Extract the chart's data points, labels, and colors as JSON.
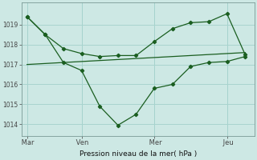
{
  "bg_color": "#cde8e4",
  "grid_color": "#a8d4cf",
  "line_color": "#1a5e20",
  "title": "Pression niveau de la mer( hPa )",
  "yticks": [
    1014,
    1015,
    1016,
    1017,
    1018,
    1019
  ],
  "ylim": [
    1013.4,
    1020.1
  ],
  "xtick_labels": [
    " Mar",
    " Ven",
    " Mer",
    " Jeu"
  ],
  "xtick_positions": [
    0,
    3,
    7,
    11
  ],
  "series1_x": [
    0,
    1,
    2,
    3,
    4,
    5,
    6,
    7,
    8,
    9,
    10,
    11,
    12
  ],
  "series1_y": [
    1019.4,
    1018.5,
    1017.1,
    1016.7,
    1014.9,
    1013.95,
    1014.5,
    1015.8,
    1016.0,
    1016.9,
    1017.1,
    1017.15,
    1017.4
  ],
  "series2_x": [
    0,
    1,
    2,
    3,
    4,
    5,
    6,
    7,
    8,
    9,
    10,
    11,
    12
  ],
  "series2_y": [
    1019.4,
    1018.5,
    1017.8,
    1017.55,
    1017.4,
    1017.45,
    1017.45,
    1018.15,
    1018.8,
    1019.1,
    1019.15,
    1019.55,
    1017.5
  ],
  "series3_x": [
    0,
    2,
    4,
    6,
    8,
    10,
    12
  ],
  "series3_y": [
    1017.0,
    1017.1,
    1017.2,
    1017.3,
    1017.4,
    1017.5,
    1017.6
  ],
  "vline_positions": [
    0,
    3,
    7,
    11
  ],
  "xlim": [
    -0.3,
    12.5
  ]
}
